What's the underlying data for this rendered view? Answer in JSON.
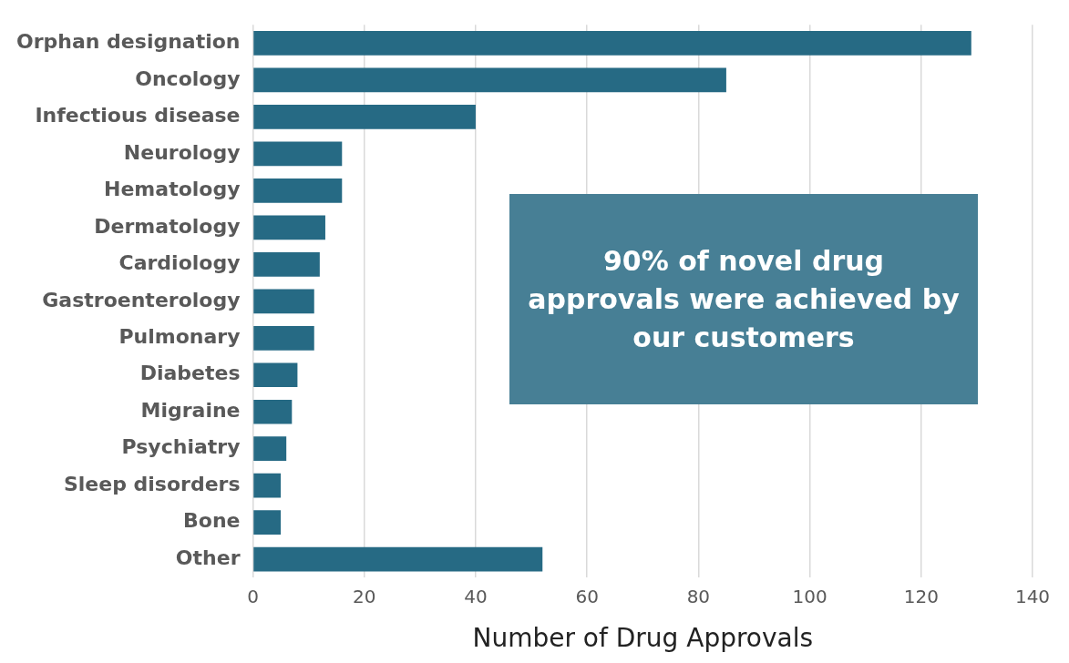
{
  "chart_data": {
    "type": "bar",
    "orientation": "horizontal",
    "xlabel": "Number of Drug Approvals",
    "categories": [
      "Orphan designation",
      "Oncology",
      "Infectious disease",
      "Neurology",
      "Hematology",
      "Dermatology",
      "Cardiology",
      "Gastroenterology",
      "Pulmonary",
      "Diabetes",
      "Migraine",
      "Psychiatry",
      "Sleep disorders",
      "Bone",
      "Other"
    ],
    "values": [
      129,
      85,
      40,
      16,
      16,
      13,
      12,
      11,
      11,
      8,
      7,
      6,
      5,
      5,
      52
    ],
    "color": "#266a84",
    "xlim": [
      0,
      140
    ],
    "xticks": [
      0,
      20,
      40,
      60,
      80,
      100,
      120,
      140
    ],
    "grid": "x",
    "legend": false,
    "annotations": [
      "90% of novel drug approvals were achieved by our customers"
    ]
  }
}
